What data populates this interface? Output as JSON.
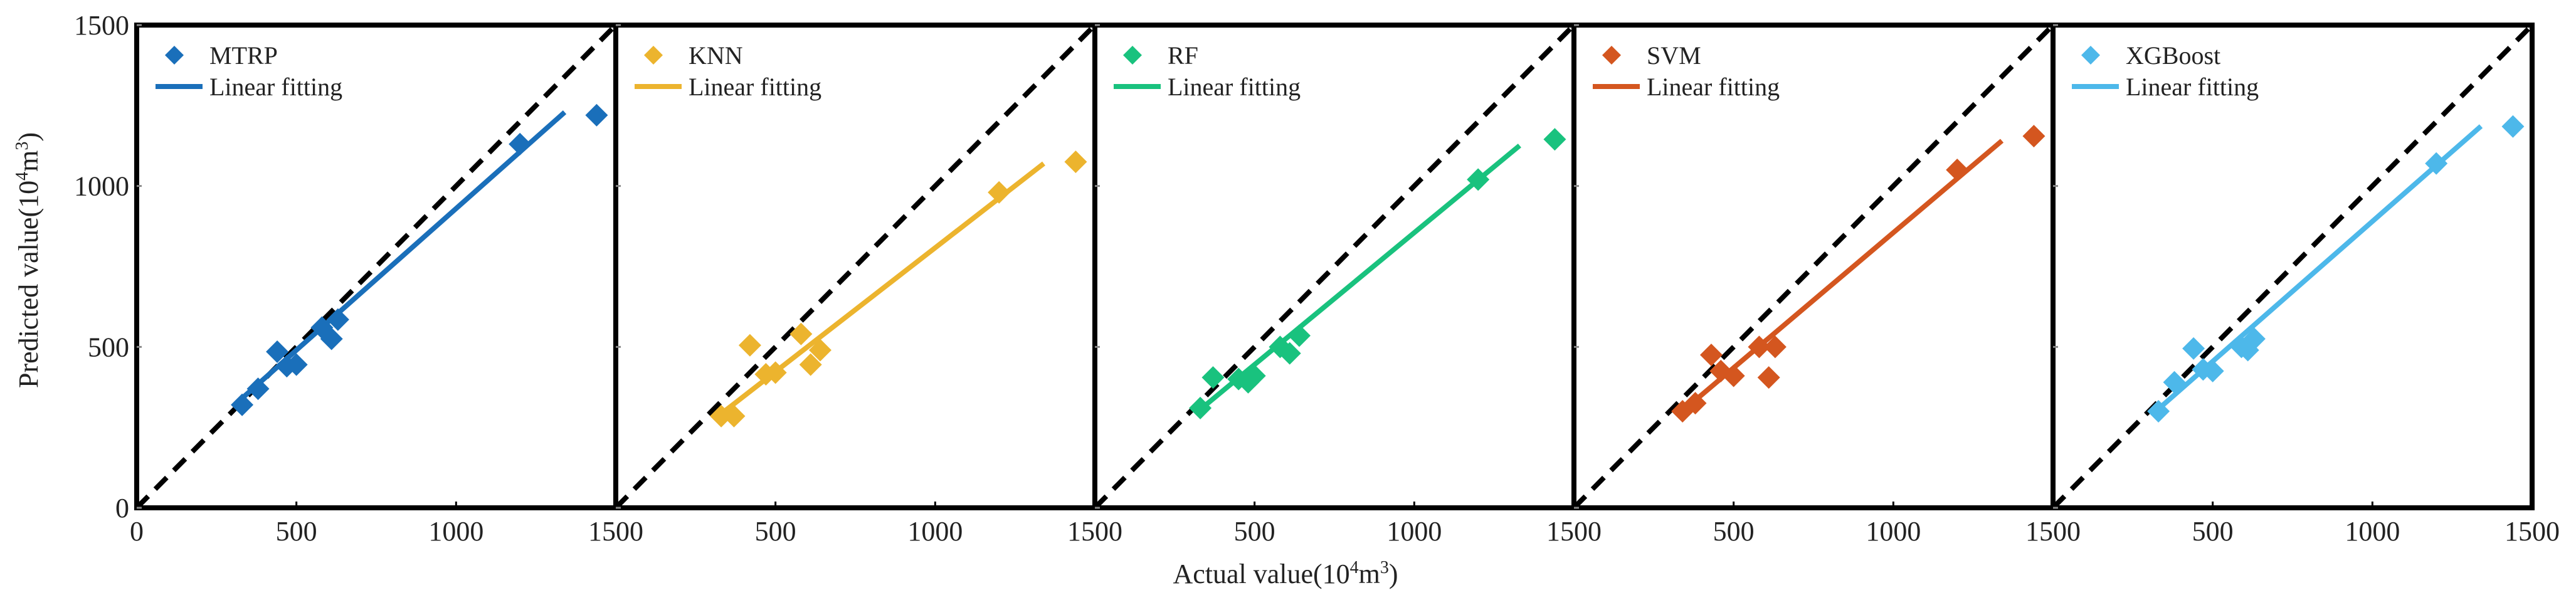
{
  "figure": {
    "xlabel": "Actual value(10",
    "xlabel_sup": "4",
    "xlabel_unit": "m",
    "xlabel_sup2": "3",
    "xlabel_end": ")",
    "ylabel": "Predicted value(10",
    "ylabel_sup": "4",
    "ylabel_unit": "m",
    "ylabel_sup2": "3",
    "ylabel_end": ")"
  },
  "chart_data": [
    {
      "type": "scatter",
      "model": "MTRP",
      "color": "#1a6fba",
      "legend": [
        "MTRP",
        "Linear fitting"
      ],
      "xlim": [
        0,
        1500
      ],
      "ylim": [
        0,
        1500
      ],
      "xticks": [
        0,
        500,
        1000,
        1500
      ],
      "yticks": [
        0,
        500,
        1000,
        1500
      ],
      "points": [
        [
          330,
          320
        ],
        [
          380,
          370
        ],
        [
          440,
          485
        ],
        [
          470,
          440
        ],
        [
          500,
          445
        ],
        [
          580,
          560
        ],
        [
          610,
          525
        ],
        [
          630,
          585
        ],
        [
          1200,
          1130
        ],
        [
          1440,
          1220
        ]
      ],
      "fit": {
        "x0": 330,
        "x1": 1340,
        "slope": 0.88,
        "intercept": 50
      },
      "reference": "y=x"
    },
    {
      "type": "scatter",
      "model": "KNN",
      "color": "#ecb42e",
      "legend": [
        "KNN",
        "Linear fitting"
      ],
      "xlim": [
        0,
        1500
      ],
      "ylim": [
        0,
        1500
      ],
      "xticks": [
        0,
        500,
        1000,
        1500
      ],
      "yticks": [
        0,
        500,
        1000,
        1500
      ],
      "points": [
        [
          330,
          285
        ],
        [
          370,
          285
        ],
        [
          420,
          505
        ],
        [
          470,
          415
        ],
        [
          500,
          420
        ],
        [
          580,
          540
        ],
        [
          610,
          445
        ],
        [
          640,
          490
        ],
        [
          1200,
          980
        ],
        [
          1440,
          1075
        ]
      ],
      "fit": {
        "x0": 330,
        "x1": 1340,
        "slope": 0.77,
        "intercept": 38
      },
      "reference": "y=x"
    },
    {
      "type": "scatter",
      "model": "RF",
      "color": "#19c27e",
      "legend": [
        "RF",
        "Linear fitting"
      ],
      "xlim": [
        0,
        1500
      ],
      "ylim": [
        0,
        1500
      ],
      "xticks": [
        0,
        500,
        1000,
        1500
      ],
      "yticks": [
        0,
        500,
        1000,
        1500
      ],
      "points": [
        [
          330,
          310
        ],
        [
          370,
          405
        ],
        [
          450,
          400
        ],
        [
          480,
          390
        ],
        [
          500,
          410
        ],
        [
          580,
          500
        ],
        [
          610,
          480
        ],
        [
          640,
          535
        ],
        [
          1200,
          1020
        ],
        [
          1440,
          1145
        ]
      ],
      "fit": {
        "x0": 330,
        "x1": 1330,
        "slope": 0.82,
        "intercept": 35
      },
      "reference": "y=x"
    },
    {
      "type": "scatter",
      "model": "SVM",
      "color": "#d4561f",
      "legend": [
        "SVM",
        "Linear fitting"
      ],
      "xlim": [
        0,
        1500
      ],
      "ylim": [
        0,
        1500
      ],
      "xticks": [
        0,
        500,
        1000,
        1500
      ],
      "yticks": [
        0,
        500,
        1000,
        1500
      ],
      "points": [
        [
          340,
          300
        ],
        [
          380,
          325
        ],
        [
          430,
          475
        ],
        [
          460,
          425
        ],
        [
          500,
          410
        ],
        [
          580,
          500
        ],
        [
          610,
          405
        ],
        [
          630,
          500
        ],
        [
          1200,
          1050
        ],
        [
          1440,
          1155
        ]
      ],
      "fit": {
        "x0": 330,
        "x1": 1340,
        "slope": 0.84,
        "intercept": 15
      },
      "reference": "y=x"
    },
    {
      "type": "scatter",
      "model": "XGBoost",
      "color": "#4db8ea",
      "legend": [
        "XGBoost",
        "Linear fitting"
      ],
      "xlim": [
        0,
        1500
      ],
      "ylim": [
        0,
        1500
      ],
      "xticks": [
        0,
        500,
        1000,
        1500
      ],
      "yticks": [
        0,
        500,
        1000,
        1500
      ],
      "points": [
        [
          330,
          300
        ],
        [
          380,
          390
        ],
        [
          440,
          495
        ],
        [
          470,
          430
        ],
        [
          500,
          425
        ],
        [
          590,
          500
        ],
        [
          610,
          490
        ],
        [
          630,
          525
        ],
        [
          1200,
          1070
        ],
        [
          1440,
          1185
        ]
      ],
      "fit": {
        "x0": 330,
        "x1": 1340,
        "slope": 0.87,
        "intercept": 20
      },
      "reference": "y=x"
    }
  ]
}
